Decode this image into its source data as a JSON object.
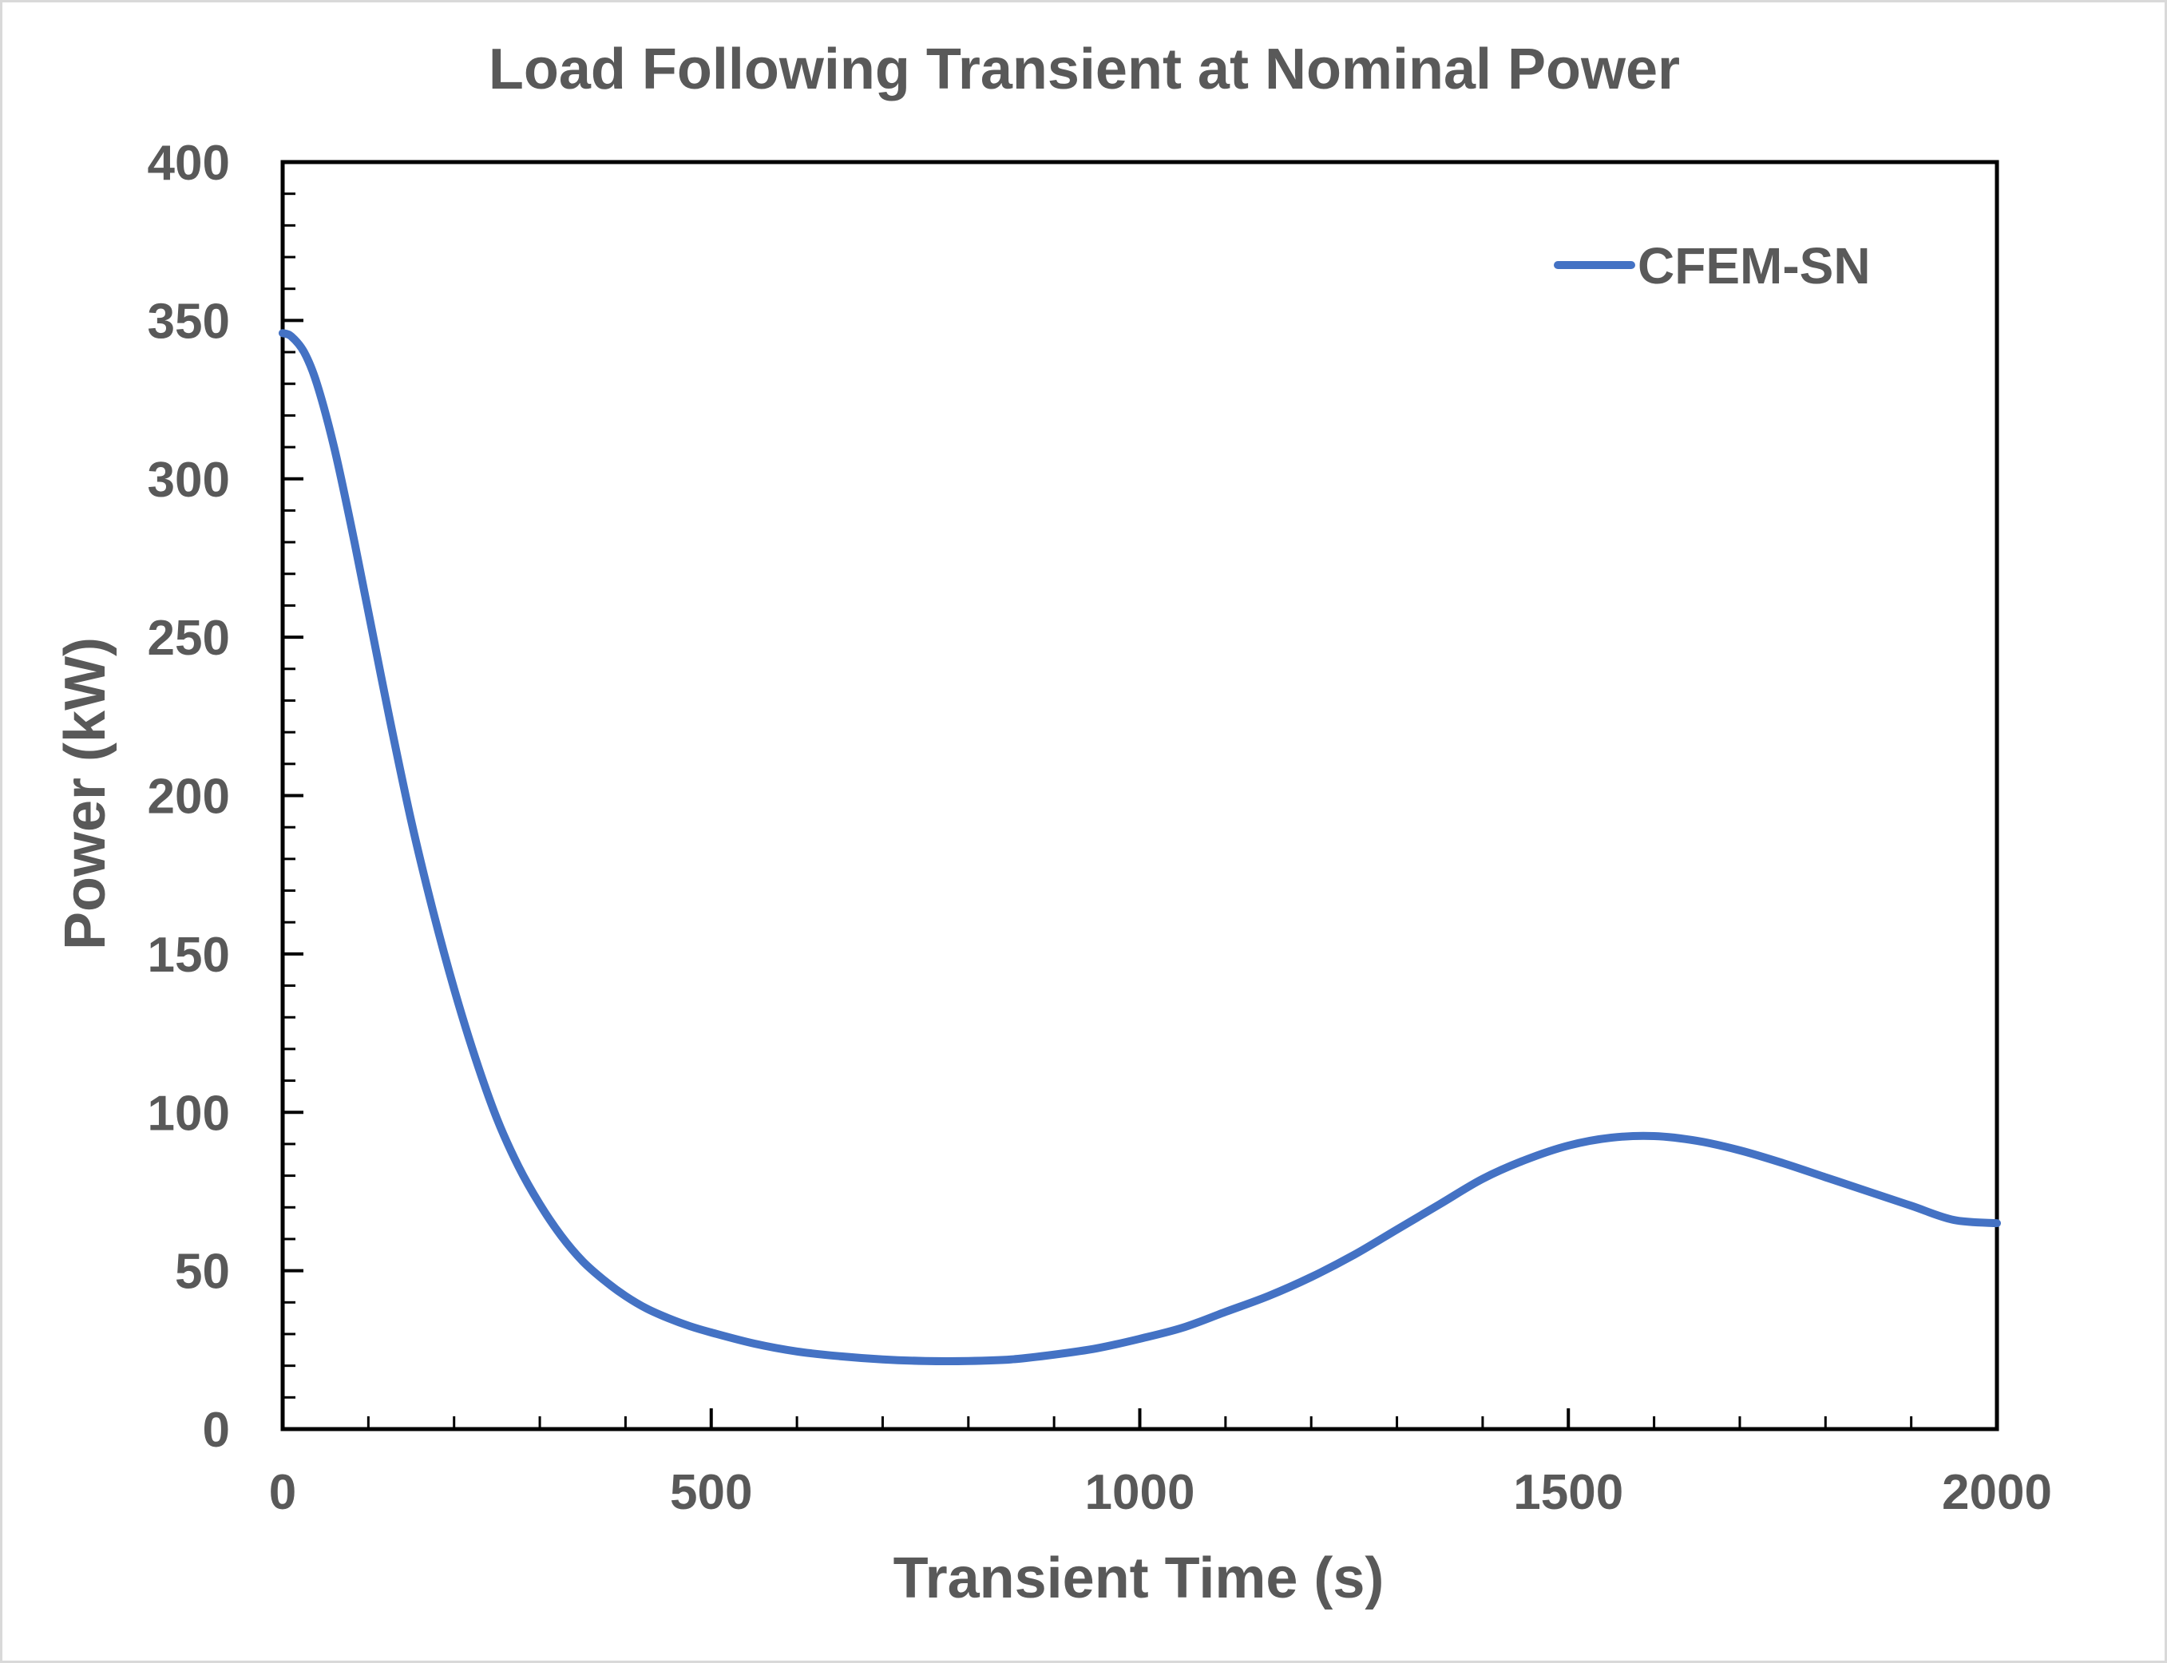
{
  "chart_data": {
    "type": "line",
    "title": "Load Following Transient at Nominal Power",
    "xlabel": "Transient Time (s)",
    "ylabel": "Power (kW)",
    "xlim": [
      0,
      2000
    ],
    "ylim": [
      0,
      400
    ],
    "x_ticks": [
      "0",
      "500",
      "1000",
      "1500",
      "2000"
    ],
    "y_ticks": [
      "0",
      "50",
      "100",
      "150",
      "200",
      "250",
      "300",
      "350",
      "400"
    ],
    "grid": false,
    "legend_position": "top-right",
    "series": [
      {
        "name": "CFEM-SN",
        "color": "#4472c4",
        "x": [
          0,
          10,
          25,
          40,
          60,
          80,
          100,
          125,
          150,
          175,
          200,
          225,
          250,
          275,
          300,
          325,
          350,
          375,
          400,
          425,
          450,
          475,
          500,
          550,
          600,
          650,
          700,
          750,
          800,
          850,
          900,
          950,
          1000,
          1050,
          1100,
          1150,
          1200,
          1250,
          1300,
          1350,
          1400,
          1450,
          1500,
          1550,
          1600,
          1650,
          1700,
          1750,
          1800,
          1850,
          1900,
          1950,
          2000
        ],
        "values": [
          346,
          345,
          340,
          330,
          310,
          285,
          258,
          224,
          192,
          164,
          139,
          117,
          98,
          83,
          71,
          61,
          53,
          47,
          42,
          38,
          35,
          32.5,
          30.5,
          27,
          24.5,
          23,
          22,
          21.5,
          21.5,
          22,
          23.5,
          25.5,
          28.5,
          32,
          37,
          42,
          48,
          55,
          63,
          71,
          79,
          85,
          89.5,
          92,
          92.5,
          91,
          88,
          84,
          79.5,
          75,
          70.5,
          66,
          65
        ]
      }
    ]
  }
}
